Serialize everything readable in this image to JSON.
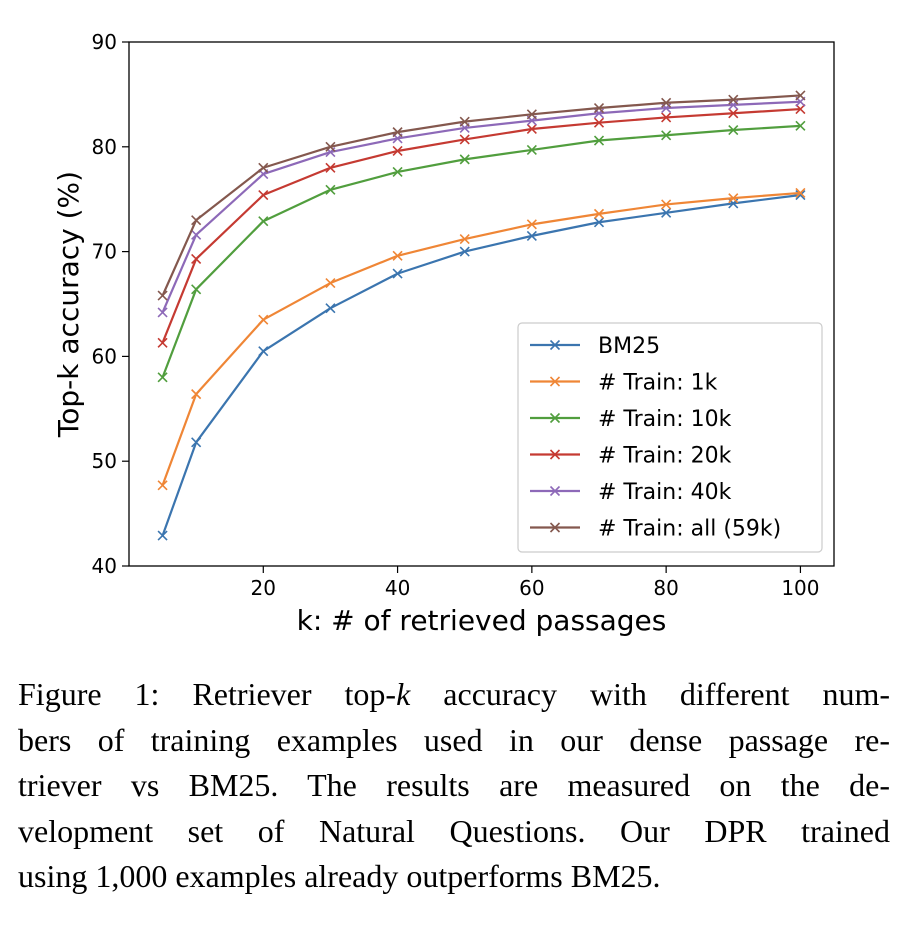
{
  "chart_data": {
    "type": "line",
    "title": "",
    "xlabel": "k: # of retrieved passages",
    "ylabel": "Top-k accuracy (%)",
    "xlim": [
      0,
      105
    ],
    "ylim": [
      40,
      90
    ],
    "xticks": [
      20,
      40,
      60,
      80,
      100
    ],
    "yticks": [
      40,
      50,
      60,
      70,
      80,
      90
    ],
    "grid": false,
    "legend_position": "lower-right",
    "marker": "x",
    "x": [
      5,
      10,
      20,
      30,
      40,
      50,
      60,
      70,
      80,
      90,
      100
    ],
    "series": [
      {
        "name": "BM25",
        "color": "#3b75af",
        "values": [
          42.9,
          51.8,
          60.5,
          64.6,
          67.9,
          70.0,
          71.5,
          72.8,
          73.7,
          74.6,
          75.4
        ]
      },
      {
        "name": "# Train: 1k",
        "color": "#ef8636",
        "values": [
          47.7,
          56.4,
          63.5,
          67.0,
          69.6,
          71.2,
          72.6,
          73.6,
          74.5,
          75.1,
          75.6
        ]
      },
      {
        "name": "# Train: 10k",
        "color": "#519e3e",
        "values": [
          58.0,
          66.4,
          72.9,
          75.9,
          77.6,
          78.8,
          79.7,
          80.6,
          81.1,
          81.6,
          82.0
        ]
      },
      {
        "name": "# Train: 20k",
        "color": "#c53a32",
        "values": [
          61.3,
          69.3,
          75.4,
          78.0,
          79.6,
          80.7,
          81.7,
          82.3,
          82.8,
          83.2,
          83.6
        ]
      },
      {
        "name": "# Train: 40k",
        "color": "#8d69b8",
        "values": [
          64.2,
          71.6,
          77.4,
          79.5,
          80.8,
          81.8,
          82.5,
          83.2,
          83.7,
          84.0,
          84.3
        ]
      },
      {
        "name": "# Train: all (59k)",
        "color": "#84584e",
        "values": [
          65.8,
          73.0,
          78.0,
          80.0,
          81.4,
          82.4,
          83.1,
          83.7,
          84.2,
          84.5,
          84.9
        ]
      }
    ]
  },
  "caption": {
    "lines": [
      "Figure 1: Retriever top-k accuracy with different num-",
      "bers of training examples used in our dense passage re-",
      "triever vs BM25.  The results are measured on the de-",
      "velopment set of Natural Questions.  Our DPR trained",
      "using 1,000 examples already outperforms BM25."
    ]
  }
}
